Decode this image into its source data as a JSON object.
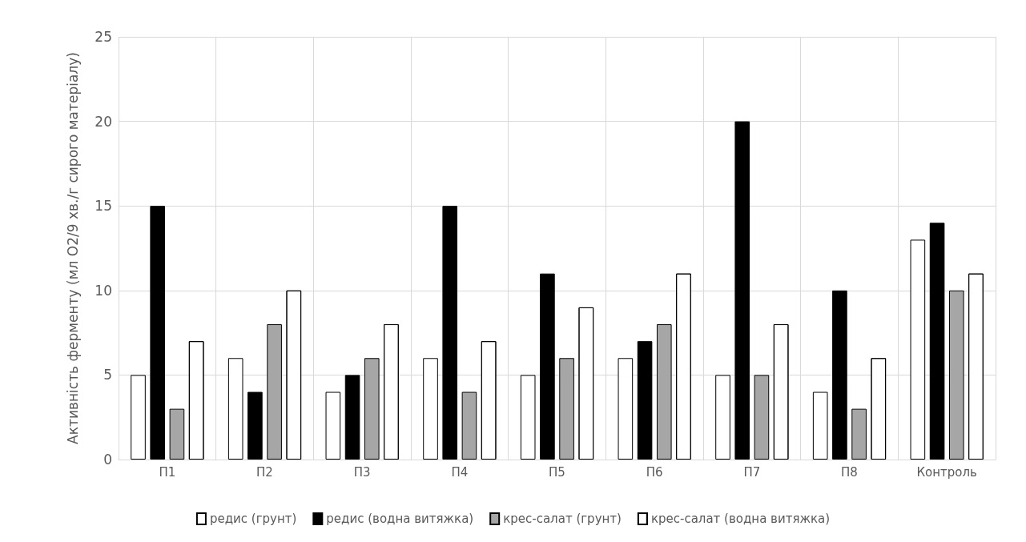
{
  "chart_data": {
    "type": "bar",
    "ylabel": "Активність ферменту (мл О2/9 хв./г сирого матеріалу)",
    "categories": [
      "П1",
      "П2",
      "П3",
      "П4",
      "П5",
      "П6",
      "П7",
      "П8",
      "Контроль"
    ],
    "series": [
      {
        "name": "редис (грунт)",
        "color": "#ffffff",
        "values": [
          5,
          6,
          4,
          6,
          5,
          6,
          5,
          4,
          13
        ]
      },
      {
        "name": "редис (водна витяжка)",
        "color": "#000000",
        "values": [
          15,
          4,
          5,
          15,
          11,
          7,
          20,
          10,
          14
        ]
      },
      {
        "name": "крес-салат (грунт)",
        "color": "#a6a6a6",
        "values": [
          3,
          8,
          6,
          4,
          6,
          8,
          5,
          3,
          10
        ]
      },
      {
        "name": "крес-салат (водна витяжка)",
        "color": "#ffffff",
        "values": [
          7,
          10,
          8,
          7,
          9,
          11,
          8,
          6,
          11
        ]
      }
    ],
    "ylim": [
      0,
      25
    ],
    "yticks": [
      0,
      5,
      10,
      15,
      20,
      25
    ],
    "grid": true,
    "legend": "bottom"
  }
}
